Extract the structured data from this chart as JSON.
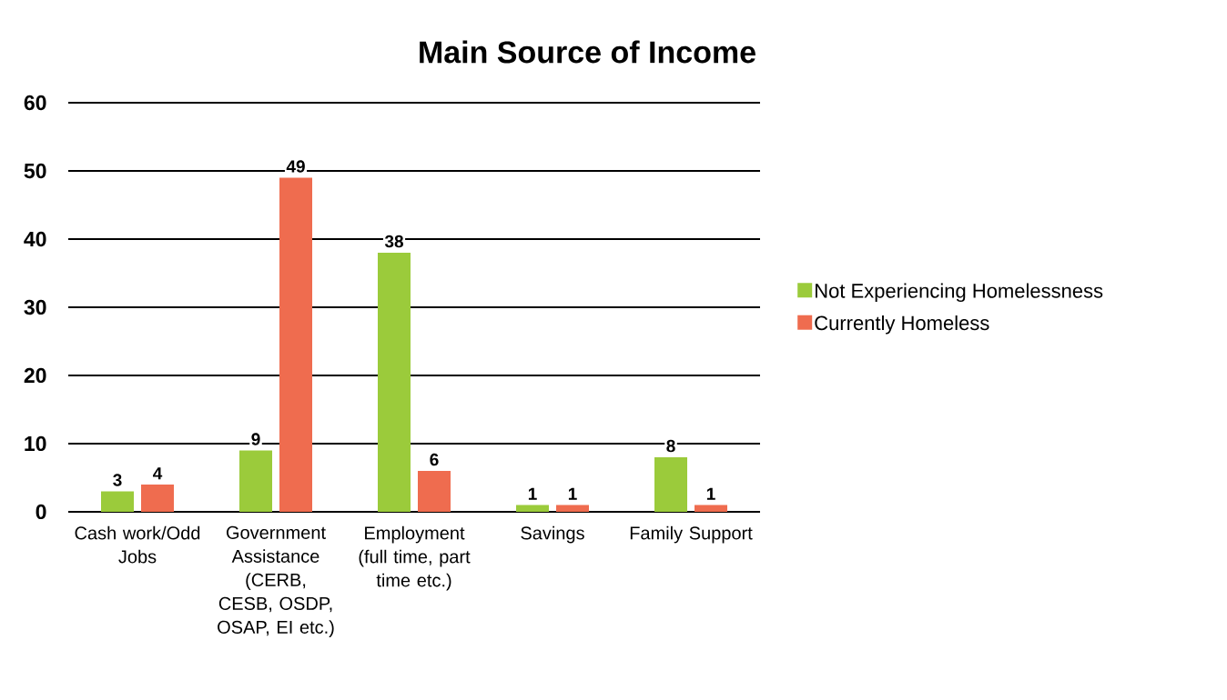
{
  "chart_data": {
    "type": "bar",
    "title": "Main Source of Income",
    "categories": [
      "Cash work/Odd Jobs",
      "Government Assistance (CERB, CESB, OSDP, OSAP, EI etc.)",
      "Employment (full time, part time etc.)",
      "Savings",
      "Family Support"
    ],
    "series": [
      {
        "name": "Not Experiencing Homelessness",
        "color": "#9bcb3b",
        "values": [
          3,
          9,
          38,
          1,
          8
        ]
      },
      {
        "name": "Currently Homeless",
        "color": "#ef6c4f",
        "values": [
          4,
          49,
          6,
          1,
          1
        ]
      }
    ],
    "ylim": [
      0,
      60
    ],
    "yticks": [
      0,
      10,
      20,
      30,
      40,
      50,
      60
    ],
    "grid": "y",
    "legend": "right",
    "data_labels": true
  }
}
